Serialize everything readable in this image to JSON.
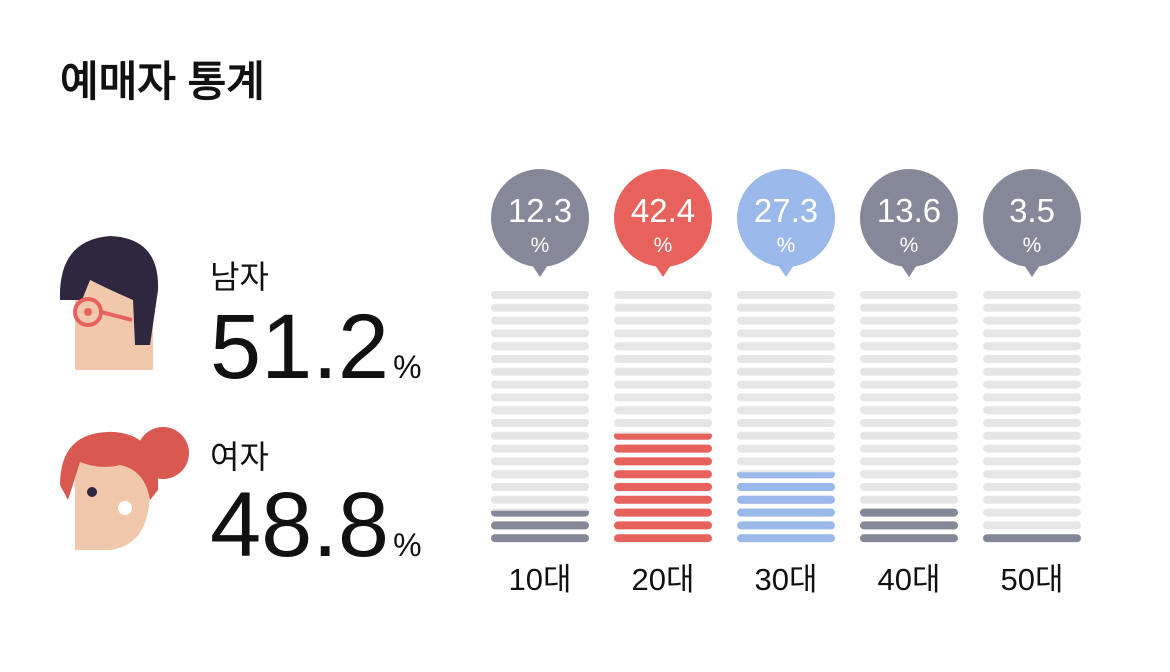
{
  "header": {
    "title": "예매자 통계"
  },
  "gender": [
    {
      "label": "남자",
      "value": 51.2,
      "unit": "%"
    },
    {
      "label": "여자",
      "value": 48.8,
      "unit": "%"
    }
  ],
  "chart_data": {
    "type": "bar",
    "categories": [
      "10대",
      "20대",
      "30대",
      "40대",
      "50대"
    ],
    "values": [
      12.3,
      42.4,
      27.3,
      13.6,
      3.5
    ],
    "colors": [
      "#858899",
      "#e8625d",
      "#9bb8ea",
      "#858899",
      "#858899"
    ],
    "unit": "%",
    "ylim": [
      0,
      100
    ]
  }
}
